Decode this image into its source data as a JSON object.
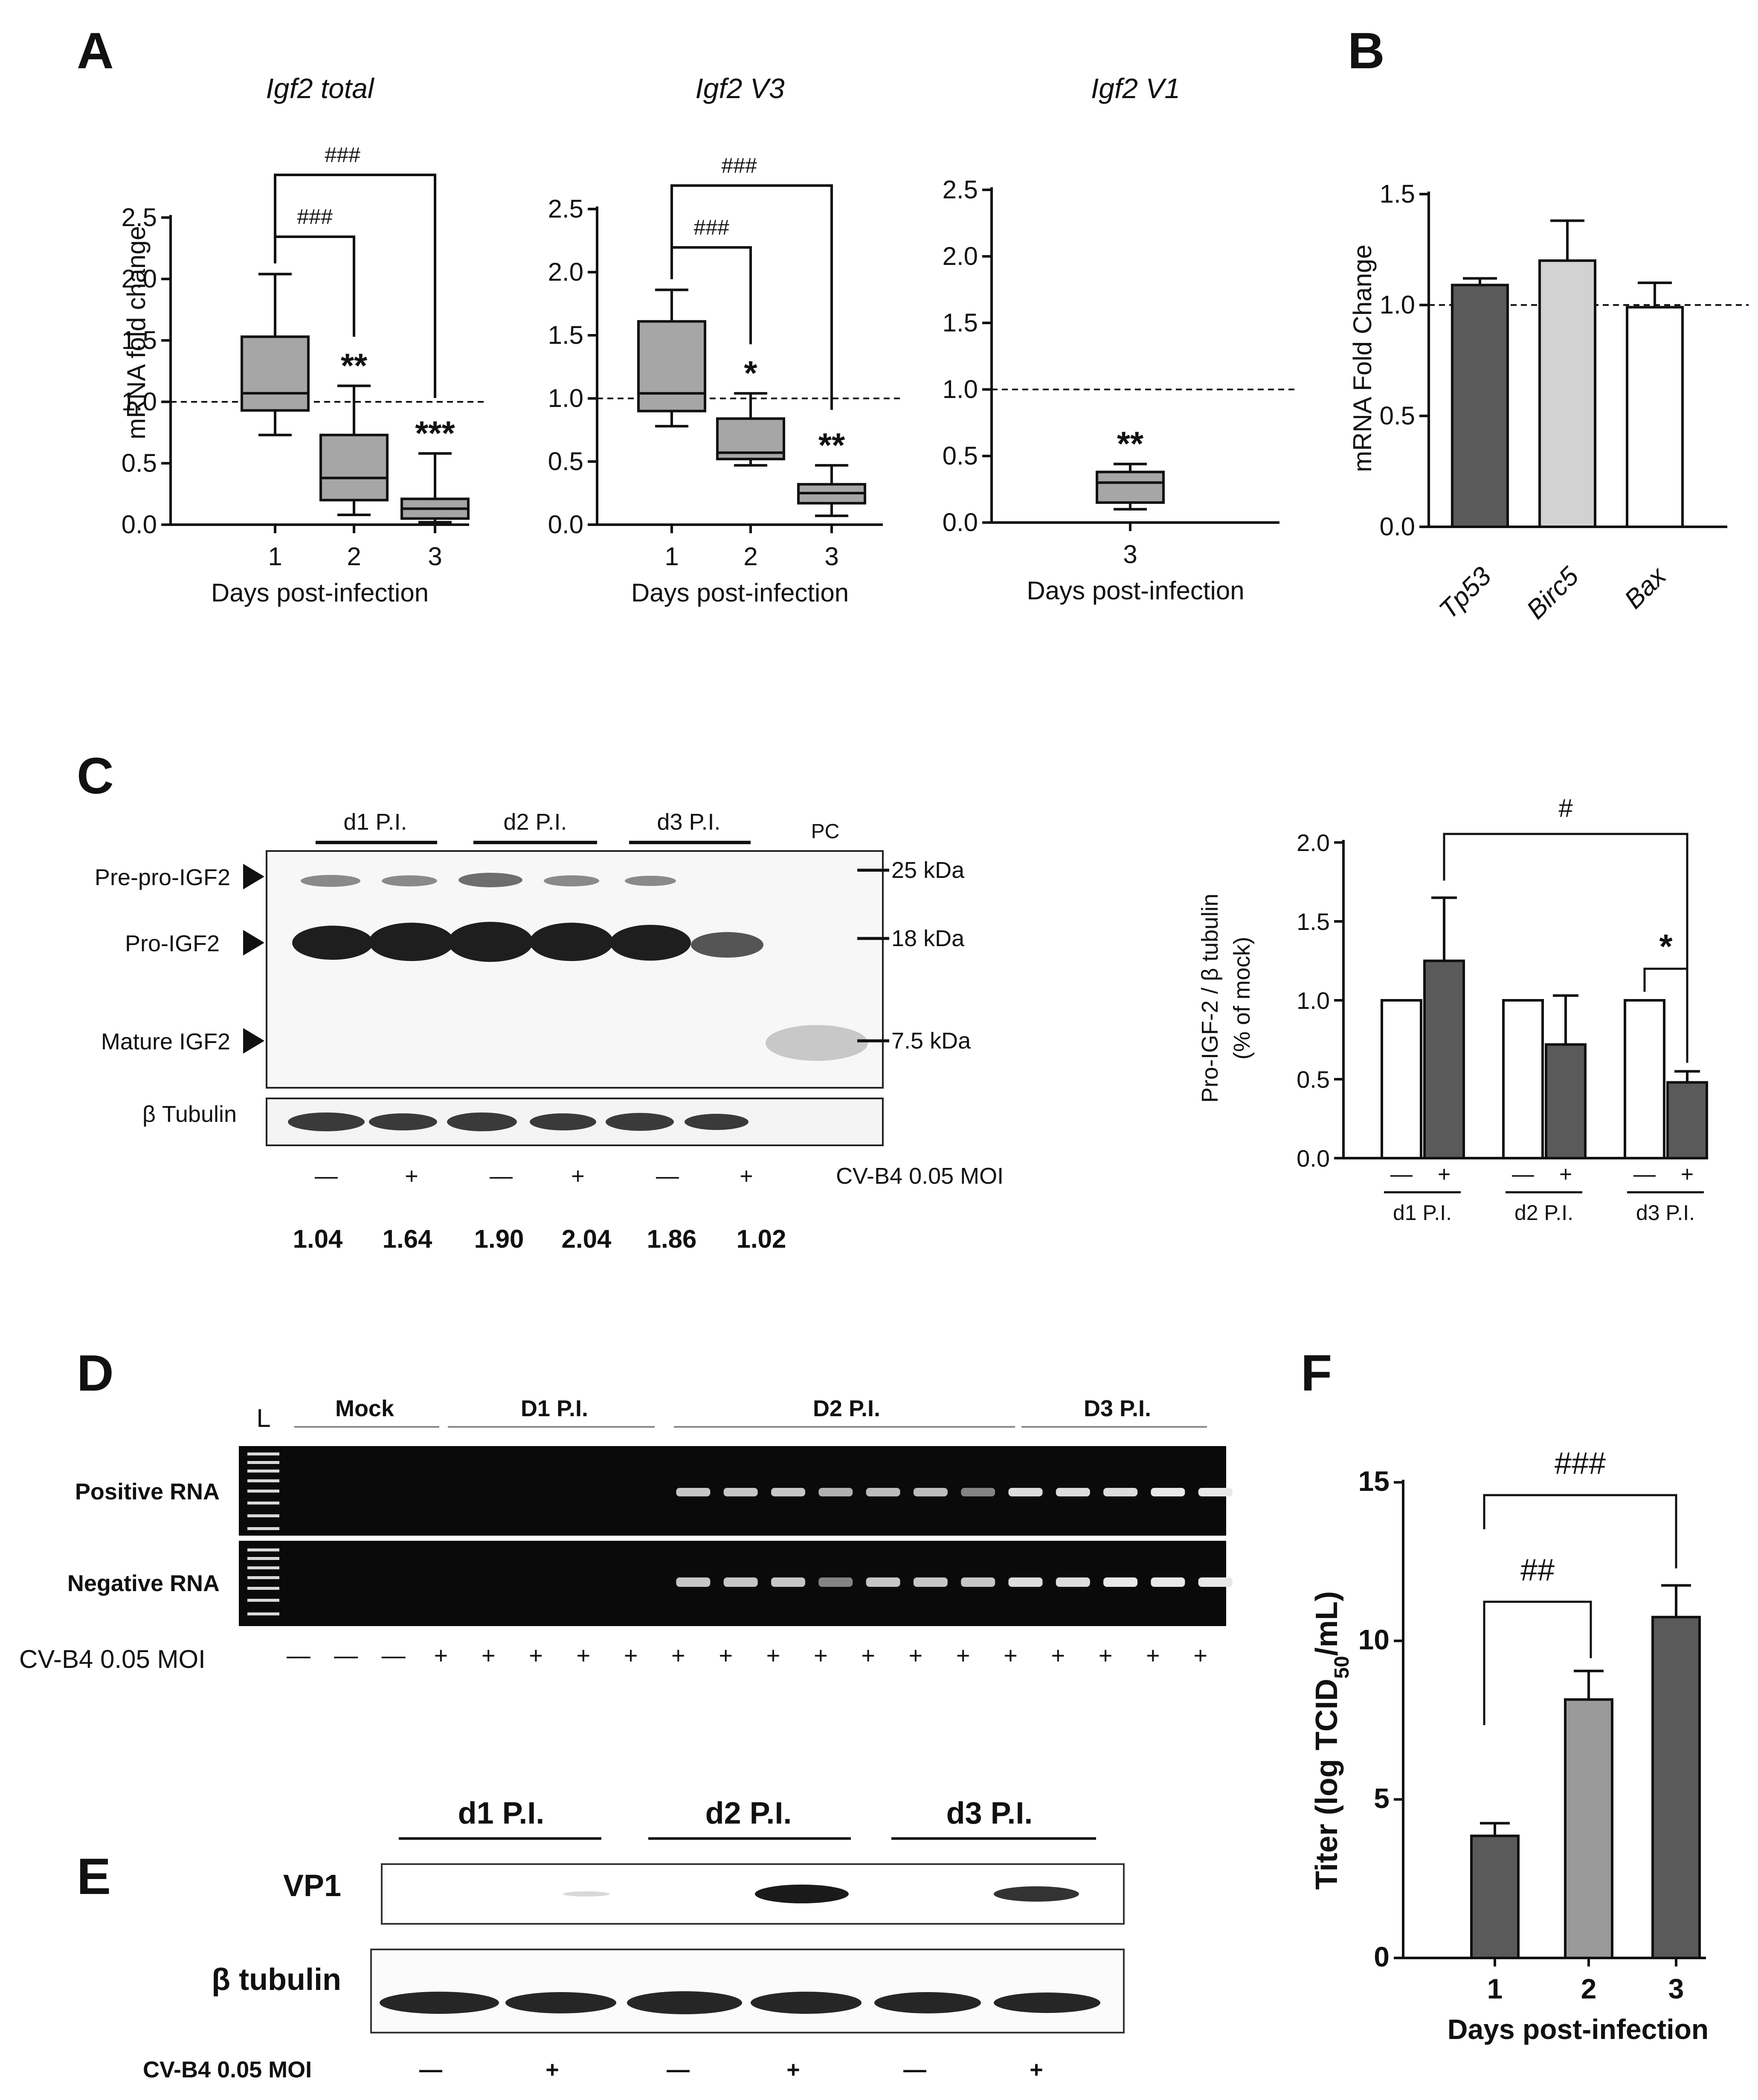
{
  "colors": {
    "gray_box": "#a6a6a6",
    "dark_bar": "#5a5a5a",
    "light_bar": "#d2d2d2",
    "mid_bar": "#9a9a9a",
    "white_bar": "#ffffff",
    "ink": "#111111"
  },
  "chart_data": [
    {
      "panel": "A",
      "type": "box",
      "title": "Igf2 total",
      "xlabel": "Days post-infection",
      "ylabel": "mRNA fold change",
      "ylim": [
        0,
        2.5
      ],
      "yticks": [
        "0.0",
        "0.5",
        "1.0",
        "1.5",
        "2.0",
        "2.5"
      ],
      "reference_line": 1.0,
      "categories": [
        "1",
        "2",
        "3"
      ],
      "boxes": [
        {
          "min": 0.73,
          "q1": 0.93,
          "median": 1.07,
          "q3": 1.53,
          "max": 2.04
        },
        {
          "min": 0.08,
          "q1": 0.2,
          "median": 0.38,
          "q3": 0.73,
          "max": 1.13
        },
        {
          "min": 0.02,
          "q1": 0.05,
          "median": 0.13,
          "q3": 0.21,
          "max": 0.58
        }
      ],
      "annotations": [
        "",
        "**",
        "***"
      ],
      "brackets": [
        {
          "from": 0,
          "to": 1,
          "label": "###"
        },
        {
          "from": 0,
          "to": 2,
          "label": "###"
        }
      ]
    },
    {
      "panel": "A",
      "type": "box",
      "title": "Igf2 V3",
      "xlabel": "Days post-infection",
      "ylabel": "",
      "ylim": [
        0,
        2.5
      ],
      "yticks": [
        "0.0",
        "0.5",
        "1.0",
        "1.5",
        "2.0",
        "2.5"
      ],
      "reference_line": 1.0,
      "categories": [
        "1",
        "2",
        "3"
      ],
      "boxes": [
        {
          "min": 0.78,
          "q1": 0.9,
          "median": 1.04,
          "q3": 1.61,
          "max": 1.86
        },
        {
          "min": 0.47,
          "q1": 0.52,
          "median": 0.57,
          "q3": 0.84,
          "max": 1.04
        },
        {
          "min": 0.07,
          "q1": 0.17,
          "median": 0.25,
          "q3": 0.32,
          "max": 0.47
        }
      ],
      "annotations": [
        "",
        "*",
        "**"
      ],
      "brackets": [
        {
          "from": 0,
          "to": 1,
          "label": "###"
        },
        {
          "from": 0,
          "to": 2,
          "label": "###"
        }
      ]
    },
    {
      "panel": "A",
      "type": "box",
      "title": "Igf2 V1",
      "xlabel": "Days post-infection",
      "ylabel": "",
      "ylim": [
        0,
        2.5
      ],
      "yticks": [
        "0.0",
        "0.5",
        "1.0",
        "1.5",
        "2.0",
        "2.5"
      ],
      "reference_line": 1.0,
      "categories": [
        "3"
      ],
      "boxes": [
        {
          "min": 0.1,
          "q1": 0.15,
          "median": 0.3,
          "q3": 0.38,
          "max": 0.44
        }
      ],
      "annotations": [
        "**"
      ],
      "brackets": []
    },
    {
      "panel": "B",
      "type": "bar",
      "ylabel": "mRNA Fold Change",
      "ylim": [
        0,
        1.5
      ],
      "yticks": [
        "0.0",
        "0.5",
        "1.0",
        "1.5"
      ],
      "reference_line": 1.0,
      "categories": [
        "Tp53",
        "Birc5",
        "Bax"
      ],
      "values": [
        1.09,
        1.2,
        0.99
      ],
      "errors": [
        0.03,
        0.18,
        0.11
      ]
    },
    {
      "panel": "C",
      "type": "bar",
      "ylabel": "Pro-IGF-2 / β tubulin",
      "ylabel2": "(% of mock)",
      "ylim": [
        0,
        2.0
      ],
      "yticks": [
        "0.0",
        "0.5",
        "1.0",
        "1.5",
        "2.0"
      ],
      "groups": [
        "d1 P.I.",
        "d2 P.I.",
        "d3 P.I."
      ],
      "treatment_labels": [
        "—",
        "+"
      ],
      "series": [
        {
          "name": "mock",
          "values": [
            1.0,
            1.0,
            1.0
          ],
          "errors": [
            0,
            0,
            0
          ]
        },
        {
          "name": "CV-B4",
          "values": [
            1.25,
            0.72,
            0.48
          ],
          "errors": [
            0.4,
            0.31,
            0.07
          ]
        }
      ],
      "brackets": [
        {
          "label": "#",
          "from_group": 0,
          "to_group": 2
        },
        {
          "label": "*",
          "within_group": 2
        }
      ]
    },
    {
      "panel": "F",
      "type": "bar",
      "xlabel": "Days post-infection",
      "ylabel_main": "Titer (log TCID",
      "ylabel_sub": "50",
      "ylabel_end": "/mL)",
      "ylim": [
        0,
        15
      ],
      "yticks": [
        "0",
        "5",
        "10",
        "15"
      ],
      "categories": [
        "1",
        "2",
        "3"
      ],
      "values": [
        3.85,
        8.15,
        10.75
      ],
      "errors": [
        0.4,
        0.9,
        1.0
      ],
      "brackets": [
        {
          "from": 0,
          "to": 1,
          "label": "##"
        },
        {
          "from": 0,
          "to": 2,
          "label": "###"
        }
      ]
    }
  ],
  "panels": {
    "A": "A",
    "B": "B",
    "C": "C",
    "D": "D",
    "E": "E",
    "F": "F"
  },
  "blot_c": {
    "lanes": [
      "d1 P.I.",
      "d2 P.I.",
      "d3 P.I."
    ],
    "pc": "PC",
    "bands": [
      "Pre-pro-IGF2",
      "Pro-IGF2",
      "Mature IGF2"
    ],
    "markers": [
      "25 kDa",
      "18 kDa",
      "7.5 kDa"
    ],
    "loading": "β Tubulin",
    "treatment": [
      "—",
      "+",
      "—",
      "+",
      "—",
      "+"
    ],
    "treatment_label": "CV-B4 0.05 MOI",
    "ratios": [
      "1.04",
      "1.64",
      "1.90",
      "2.04",
      "1.86",
      "1.02"
    ]
  },
  "gel_d": {
    "ladder": "L",
    "groups": [
      "Mock",
      "D1 P.I.",
      "D2 P.I.",
      "D3 P.I."
    ],
    "rows": [
      "Positive RNA",
      "Negative RNA"
    ],
    "treatment_label": "CV-B4 0.05 MOI",
    "treatment": [
      "—",
      "—",
      "—",
      "+",
      "+",
      "+",
      "+",
      "+",
      "+",
      "+",
      "+",
      "+",
      "+",
      "+",
      "+",
      "+",
      "+",
      "+",
      "+",
      "+"
    ]
  },
  "blot_e": {
    "lanes": [
      "d1 P.I.",
      "d2 P.I.",
      "d3 P.I."
    ],
    "rows": [
      "VP1",
      "β tubulin"
    ],
    "treatment_label": "CV-B4 0.05 MOI",
    "treatment": [
      "—",
      "+",
      "—",
      "+",
      "—",
      "+"
    ]
  }
}
